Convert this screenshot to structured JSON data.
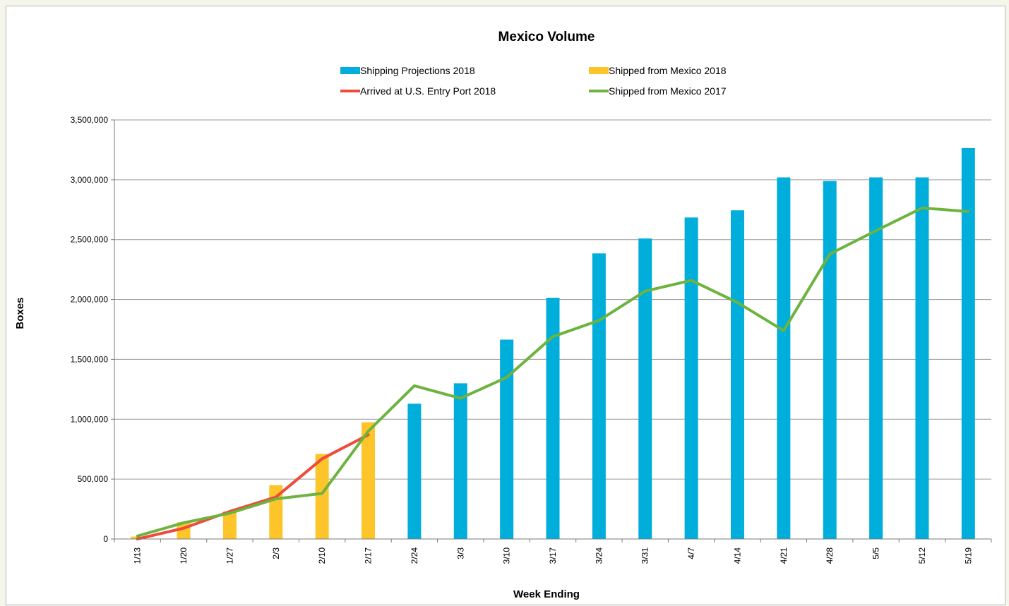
{
  "chart_data": {
    "type": "bar",
    "title": "Mexico Volume",
    "xlabel": "Week Ending",
    "ylabel": "Boxes",
    "ylim": [
      0,
      3500000
    ],
    "yticks": [
      0,
      500000,
      1000000,
      1500000,
      2000000,
      2500000,
      3000000,
      3500000
    ],
    "ytick_labels": [
      "0",
      "500,000",
      "1,000,000",
      "1,500,000",
      "2,000,000",
      "2,500,000",
      "3,000,000",
      "3,500,000"
    ],
    "grid": true,
    "legend_position": "top",
    "categories": [
      "1/13",
      "1/20",
      "1/27",
      "2/3",
      "2/10",
      "2/17",
      "2/24",
      "3/3",
      "3/10",
      "3/17",
      "3/24",
      "3/31",
      "4/7",
      "4/14",
      "4/21",
      "4/28",
      "5/5",
      "5/12",
      "5/19"
    ],
    "series": [
      {
        "name": "Shipping Projections 2018",
        "kind": "bar",
        "color": "#00aedb",
        "values": [
          null,
          null,
          null,
          null,
          null,
          null,
          1130000,
          1300000,
          1665000,
          2015000,
          2385000,
          2510000,
          2685000,
          2745000,
          3020000,
          2990000,
          3020000,
          3020000,
          3265000
        ]
      },
      {
        "name": "Shipped from Mexico 2018",
        "kind": "bar",
        "color": "#fdc52a",
        "values": [
          20000,
          140000,
          230000,
          450000,
          710000,
          975000,
          null,
          null,
          null,
          null,
          null,
          null,
          null,
          null,
          null,
          null,
          null,
          null,
          null
        ]
      },
      {
        "name": "Arrived at U.S. Entry Port 2018",
        "kind": "line",
        "color": "#ef4a3a",
        "values": [
          0,
          90000,
          230000,
          350000,
          670000,
          870000,
          null,
          null,
          null,
          null,
          null,
          null,
          null,
          null,
          null,
          null,
          null,
          null,
          null
        ]
      },
      {
        "name": "Shipped from Mexico 2017",
        "kind": "line",
        "color": "#6db33f",
        "values": [
          25000,
          135000,
          215000,
          335000,
          380000,
          900000,
          1280000,
          1175000,
          1350000,
          1690000,
          1825000,
          2070000,
          2160000,
          1975000,
          1740000,
          2380000,
          2575000,
          2765000,
          2735000
        ]
      }
    ]
  }
}
